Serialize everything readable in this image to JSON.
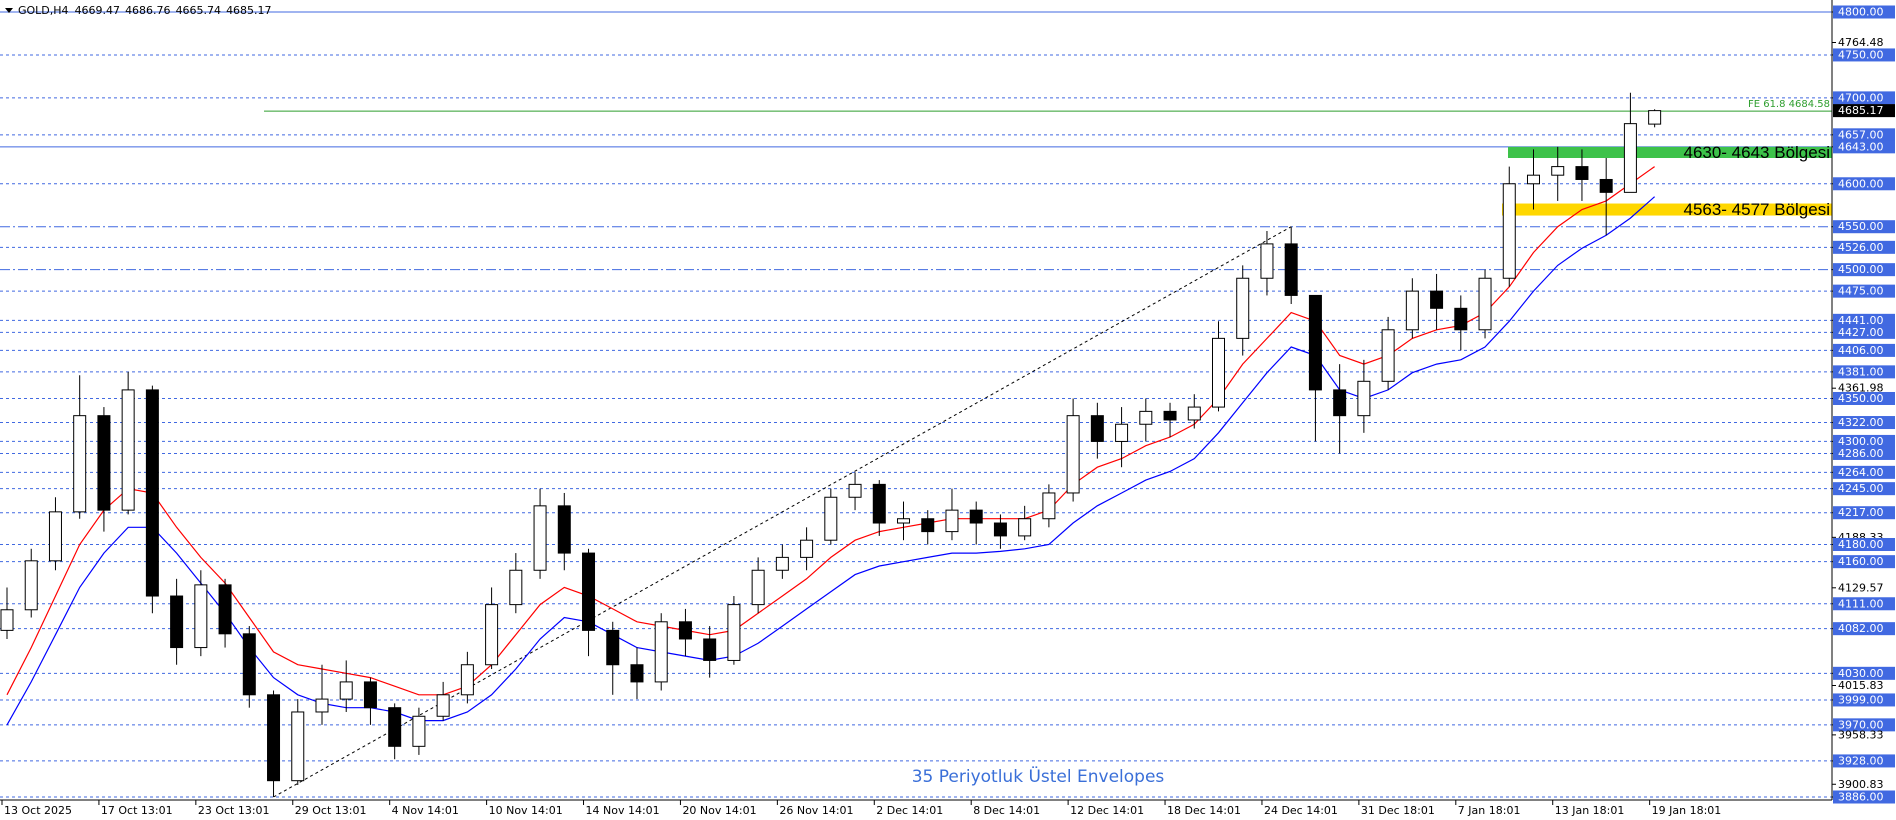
{
  "chart_data": {
    "type": "candlestick",
    "title": "GOLD,H4",
    "categories": [
      "13 Oct 2025",
      null,
      null,
      null,
      "17 Oct 13:01",
      null,
      null,
      null,
      "23 Oct 13:01",
      null,
      null,
      null,
      "29 Oct 13:01",
      null,
      null,
      null,
      "4 Nov 14:01",
      null,
      null,
      null,
      "10 Nov 14:01",
      null,
      null,
      null,
      "14 Nov 14:01",
      null,
      null,
      null,
      "20 Nov 14:01",
      null,
      null,
      null,
      "26 Nov 14:01",
      null,
      null,
      null,
      "2 Dec 14:01",
      null,
      null,
      null,
      "8 Dec 14:01",
      null,
      null,
      null,
      "12 Dec 14:01",
      null,
      null,
      null,
      "18 Dec 14:01",
      null,
      null,
      null,
      "24 Dec 14:01",
      null,
      null,
      null,
      "31 Dec 18:01",
      null,
      null,
      null,
      "7 Jan 18:01",
      null,
      null,
      null,
      "13 Jan 18:01",
      null,
      null,
      null,
      "19 Jan 18:01"
    ],
    "candles": {
      "open": [
        4080,
        4104,
        4161,
        4218,
        4330,
        4220,
        4360,
        4120,
        4060,
        4133,
        4076,
        4005,
        3905,
        3985,
        4000,
        4020,
        3990,
        3945,
        3980,
        4005,
        4040,
        4110,
        4150,
        4225,
        4170,
        4080,
        4040,
        4020,
        4090,
        4070,
        4045,
        4110,
        4150,
        4165,
        4185,
        4235,
        4250,
        4205,
        4210,
        4195,
        4220,
        4205,
        4190,
        4210,
        4240,
        4330,
        4300,
        4320,
        4335,
        4325,
        4340,
        4420,
        4490,
        4530,
        4470,
        4360,
        4330,
        4370,
        4430,
        4475,
        4455,
        4430,
        4490,
        4600,
        4610,
        4620,
        4605,
        4590,
        4669.47
      ],
      "high": [
        4130,
        4175,
        4235,
        4377,
        4340,
        4381,
        4365,
        4140,
        4150,
        4140,
        4085,
        4010,
        4000,
        4040,
        4045,
        4025,
        3995,
        3990,
        4020,
        4055,
        4130,
        4170,
        4245,
        4240,
        4175,
        4090,
        4060,
        4100,
        4105,
        4085,
        4120,
        4165,
        4180,
        4200,
        4245,
        4264,
        4255,
        4230,
        4220,
        4245,
        4230,
        4215,
        4225,
        4250,
        4350,
        4345,
        4340,
        4350,
        4345,
        4355,
        4440,
        4505,
        4545,
        4550,
        4470,
        4390,
        4395,
        4445,
        4490,
        4495,
        4470,
        4500,
        4620,
        4640,
        4643,
        4640,
        4630,
        4706,
        4686.76
      ],
      "low": [
        4070,
        4095,
        4150,
        4210,
        4195,
        4215,
        4100,
        4040,
        4050,
        4060,
        3990,
        3886,
        3900,
        3970,
        3985,
        3970,
        3930,
        3935,
        3975,
        3995,
        4035,
        4100,
        4140,
        4150,
        4050,
        4005,
        4000,
        4010,
        4050,
        4025,
        4040,
        4100,
        4140,
        4150,
        4180,
        4220,
        4190,
        4185,
        4180,
        4185,
        4180,
        4175,
        4185,
        4200,
        4230,
        4280,
        4270,
        4300,
        4305,
        4315,
        4335,
        4400,
        4470,
        4460,
        4300,
        4286,
        4310,
        4360,
        4420,
        4430,
        4406,
        4420,
        4480,
        4570,
        4580,
        4580,
        4540,
        4590,
        4665.74
      ],
      "close": [
        4104,
        4161,
        4218,
        4330,
        4220,
        4360,
        4120,
        4060,
        4133,
        4076,
        4005,
        3905,
        3985,
        4000,
        4020,
        3990,
        3945,
        3980,
        4005,
        4040,
        4110,
        4150,
        4225,
        4170,
        4080,
        4040,
        4020,
        4090,
        4070,
        4045,
        4110,
        4150,
        4165,
        4185,
        4235,
        4250,
        4205,
        4210,
        4195,
        4220,
        4205,
        4190,
        4210,
        4240,
        4330,
        4300,
        4320,
        4335,
        4325,
        4340,
        4420,
        4490,
        4530,
        4470,
        4360,
        4330,
        4370,
        4430,
        4475,
        4455,
        4430,
        4490,
        4600,
        4610,
        4620,
        4605,
        4590,
        4670,
        4685.17
      ]
    },
    "series": [
      {
        "color": "#ff0000",
        "values": [
          4005,
          4060,
          4120,
          4180,
          4220,
          4245,
          4240,
          4200,
          4165,
          4135,
          4095,
          4055,
          4040,
          4035,
          4030,
          4025,
          4015,
          4005,
          4005,
          4015,
          4040,
          4075,
          4110,
          4130,
          4120,
          4105,
          4090,
          4085,
          4080,
          4075,
          4080,
          4100,
          4120,
          4140,
          4165,
          4185,
          4195,
          4200,
          4205,
          4210,
          4210,
          4210,
          4210,
          4220,
          4250,
          4270,
          4280,
          4295,
          4305,
          4320,
          4350,
          4390,
          4420,
          4450,
          4440,
          4400,
          4390,
          4400,
          4420,
          4430,
          4435,
          4450,
          4480,
          4520,
          4550,
          4570,
          4580,
          4600,
          4620
        ]
      },
      {
        "color": "#0000ff",
        "values": [
          3970,
          4020,
          4075,
          4130,
          4170,
          4200,
          4200,
          4170,
          4135,
          4100,
          4060,
          4025,
          4005,
          3995,
          3990,
          3990,
          3985,
          3975,
          3975,
          3985,
          4005,
          4035,
          4070,
          4095,
          4090,
          4075,
          4060,
          4055,
          4050,
          4045,
          4050,
          4065,
          4085,
          4105,
          4125,
          4145,
          4155,
          4160,
          4165,
          4170,
          4170,
          4172,
          4175,
          4180,
          4205,
          4225,
          4240,
          4255,
          4265,
          4280,
          4310,
          4345,
          4380,
          4410,
          4400,
          4360,
          4350,
          4360,
          4380,
          4390,
          4395,
          4410,
          4440,
          4475,
          4505,
          4525,
          4540,
          4560,
          4585
        ]
      }
    ],
    "ylim": [
      3886,
      4800
    ],
    "yticks": [
      {
        "value": 4800,
        "label": "4800.00",
        "line": "solid"
      },
      {
        "value": 4764.48,
        "label": "4764.48"
      },
      {
        "value": 4750,
        "label": "4750.00",
        "line": "dashed"
      },
      {
        "value": 4700,
        "label": "4700.00",
        "line": "dashed"
      },
      {
        "value": 4657,
        "label": "4657.00",
        "line": "dashed"
      },
      {
        "value": 4643,
        "label": "4643.00",
        "line": "solid"
      },
      {
        "value": 4600,
        "label": "4600.00",
        "line": "dashed"
      },
      {
        "value": 4550,
        "label": "4550.00",
        "line": "dashdot"
      },
      {
        "value": 4526,
        "label": "4526.00",
        "line": "dashed"
      },
      {
        "value": 4500,
        "label": "4500.00",
        "line": "dashdot"
      },
      {
        "value": 4475,
        "label": "4475.00",
        "line": "dashed"
      },
      {
        "value": 4441,
        "label": "4441.00",
        "line": "dashed"
      },
      {
        "value": 4427,
        "label": "4427.00",
        "line": "dashed"
      },
      {
        "value": 4406,
        "label": "4406.00",
        "line": "dashed"
      },
      {
        "value": 4381,
        "label": "4381.00",
        "line": "dashed"
      },
      {
        "value": 4361.98,
        "label": "4361.98"
      },
      {
        "value": 4350,
        "label": "4350.00",
        "line": "dashed"
      },
      {
        "value": 4322,
        "label": "4322.00",
        "line": "dashed"
      },
      {
        "value": 4300,
        "label": "4300.00",
        "line": "dashed"
      },
      {
        "value": 4286,
        "label": "4286.00",
        "line": "dashed"
      },
      {
        "value": 4264,
        "label": "4264.00",
        "line": "dashed"
      },
      {
        "value": 4245,
        "label": "4245.00",
        "line": "dashed"
      },
      {
        "value": 4217,
        "label": "4217.00",
        "line": "dashed"
      },
      {
        "value": 4188.33,
        "label": "4188.33"
      },
      {
        "value": 4180,
        "label": "4180.00",
        "line": "dashed"
      },
      {
        "value": 4160,
        "label": "4160.00",
        "line": "dashed"
      },
      {
        "value": 4129.57,
        "label": "4129.57"
      },
      {
        "value": 4111,
        "label": "4111.00",
        "line": "dashed"
      },
      {
        "value": 4082,
        "label": "4082.00",
        "line": "dashed"
      },
      {
        "value": 4030,
        "label": "4030.00",
        "line": "dashed"
      },
      {
        "value": 4015.83,
        "label": "4015.83"
      },
      {
        "value": 3999,
        "label": "3999.00",
        "line": "dashed"
      },
      {
        "value": 3970,
        "label": "3970.00",
        "line": "dashed"
      },
      {
        "value": 3958.33,
        "label": "3958.33"
      },
      {
        "value": 3928,
        "label": "3928.00",
        "line": "dashed"
      },
      {
        "value": 3900.83,
        "label": "3900.83"
      },
      {
        "value": 3886,
        "label": "3886.00",
        "line": "dashed"
      }
    ],
    "fibo": {
      "value": 4684.58,
      "label": "FE 61.8 4684.58",
      "color": "#2e9e2e"
    },
    "zones": [
      {
        "low": 4630,
        "high": 4643,
        "label": "4630- 4643 Bölgesi",
        "color": "#3dc24a"
      },
      {
        "low": 4563,
        "high": 4577,
        "label": "4563- 4577 Bölgesi",
        "color": "#ffd700"
      }
    ],
    "trendline": {
      "x": [
        11,
        53
      ],
      "y": [
        3886,
        4550
      ]
    },
    "annotation": "35 Periyotluk Üstel Envelopes"
  }
}
